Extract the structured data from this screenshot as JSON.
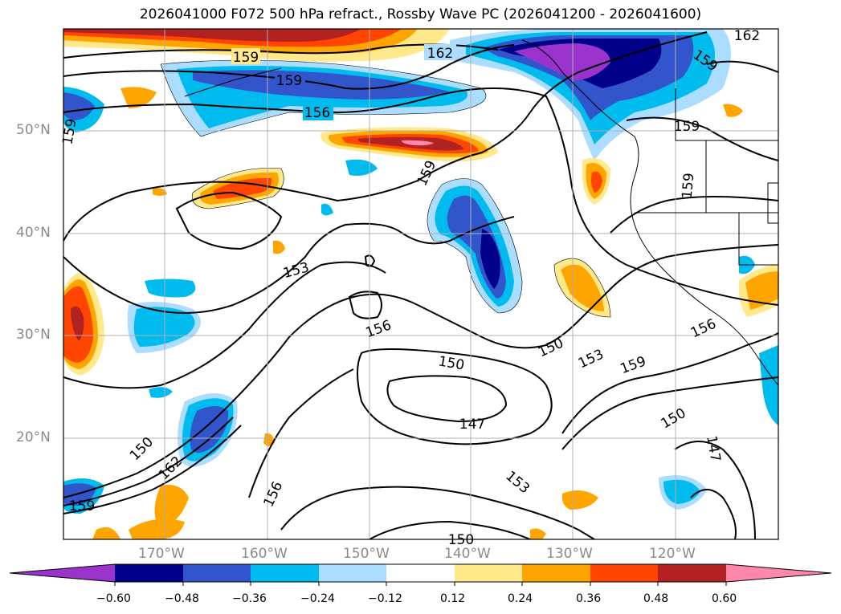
{
  "title": "2026041000 F072 500 hPa refract., Rossby Wave PC (2026041200 - 2026041600)",
  "lat_labels": [
    "50°N",
    "40°N",
    "30°N",
    "20°N"
  ],
  "lon_labels": [
    "170°W",
    "160°W",
    "150°W",
    "140°W",
    "130°W",
    "120°W"
  ],
  "contour_labels": [
    "159",
    "162",
    "159",
    "156",
    "159",
    "162",
    "159",
    "159",
    "159",
    "159",
    "153",
    "156",
    "150",
    "150",
    "153",
    "159",
    "147",
    "156",
    "150",
    "150",
    "162",
    "159",
    "156",
    "153",
    "150",
    "147"
  ],
  "colorbar": {
    "ticks": [
      "−0.60",
      "−0.48",
      "−0.36",
      "−0.24",
      "−0.12",
      "0.12",
      "0.24",
      "0.36",
      "0.48",
      "0.60"
    ],
    "colors": [
      "#9933cc",
      "#000088",
      "#3355cc",
      "#00bbee",
      "#aaddff",
      "#ffffff",
      "#ffe98a",
      "#ffa500",
      "#ff4500",
      "#b22222",
      "#ff88aa"
    ]
  }
}
